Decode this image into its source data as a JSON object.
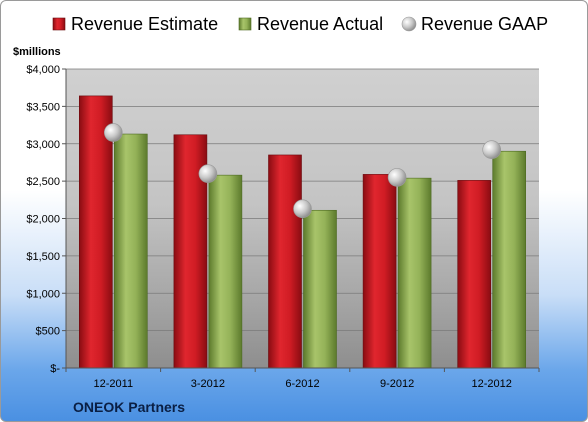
{
  "chart_data": {
    "type": "bar",
    "ylabel": "$millions",
    "categories": [
      "12-2011",
      "3-2012",
      "6-2012",
      "9-2012",
      "12-2012"
    ],
    "series": [
      {
        "name": "Revenue Estimate",
        "type": "bar",
        "color": "#c0141c",
        "values": [
          3640,
          3120,
          2850,
          2590,
          2510
        ]
      },
      {
        "name": "Revenue Actual",
        "type": "bar",
        "color": "#8fae52",
        "values": [
          3130,
          2580,
          2110,
          2540,
          2900
        ]
      },
      {
        "name": "Revenue GAAP",
        "type": "marker",
        "color": "#c8c8c8",
        "values": [
          3150,
          2600,
          2130,
          2550,
          2920
        ]
      }
    ],
    "ylim": [
      0,
      4000
    ],
    "yticks": [
      0,
      500,
      1000,
      1500,
      2000,
      2500,
      3000,
      3500,
      4000
    ],
    "ytick_labels": [
      "$-",
      "$500",
      "$1,000",
      "$1,500",
      "$2,000",
      "$2,500",
      "$3,000",
      "$3,500",
      "$4,000"
    ],
    "legend_position": "top",
    "grid": true
  },
  "company": "ONEOK Partners"
}
